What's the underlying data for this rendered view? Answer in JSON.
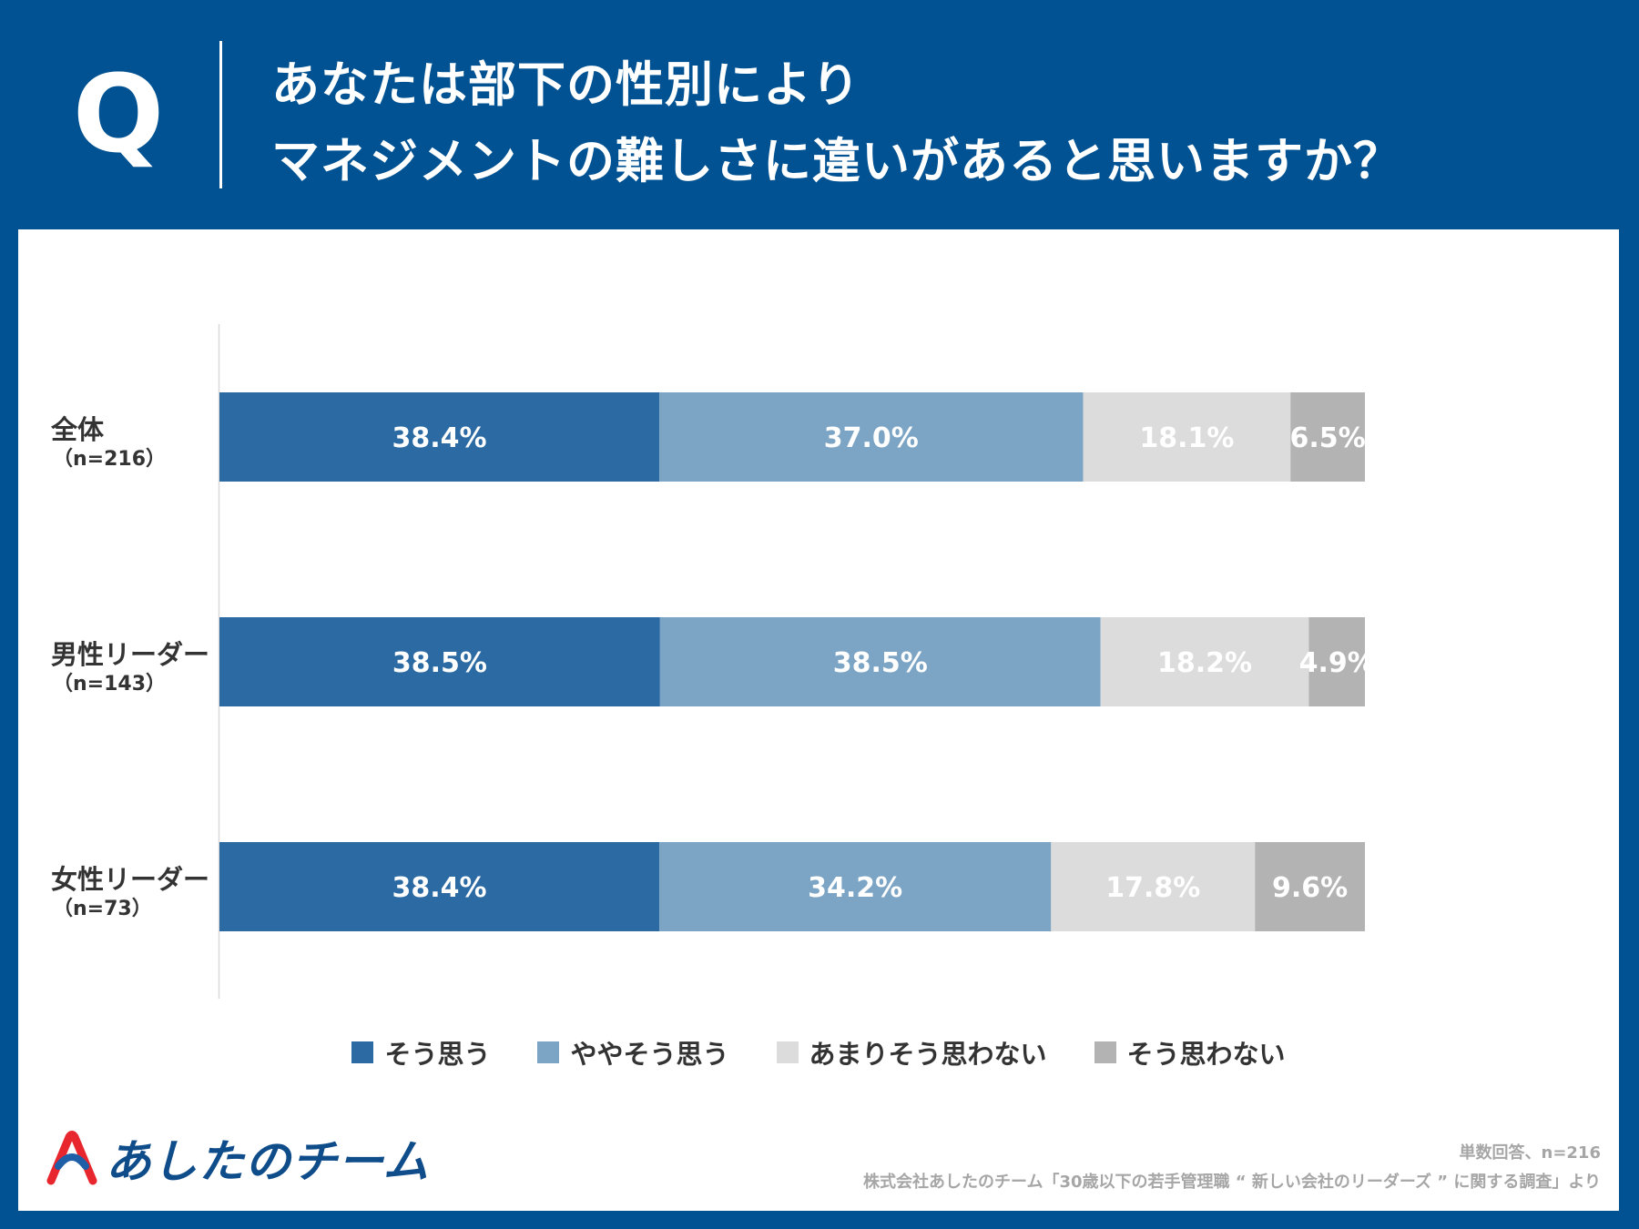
{
  "header": {
    "q_mark": "Q",
    "title_line1": "あなたは部下の性別により",
    "title_line2": "マネジメントの難しさに違いがあると思いますか？"
  },
  "chart_data": {
    "type": "bar",
    "orientation": "horizontal",
    "stacked": true,
    "unit": "%",
    "categories": [
      "全体",
      "男性リーダー",
      "女性リーダー"
    ],
    "category_n": [
      "（n=216）",
      "（n=143）",
      "（n=73）"
    ],
    "series": [
      {
        "name": "そう思う",
        "color": "#2b6aa3",
        "values": [
          38.4,
          38.5,
          38.4
        ],
        "labels": [
          "38.4%",
          "38.5%",
          "38.4%"
        ]
      },
      {
        "name": "ややそう思う",
        "color": "#7ba4c5",
        "values": [
          37.0,
          38.5,
          34.2
        ],
        "labels": [
          "37.0%",
          "38.5%",
          "34.2%"
        ]
      },
      {
        "name": "あまりそう思わない",
        "color": "#dcdcdc",
        "values": [
          18.1,
          18.2,
          17.8
        ],
        "labels": [
          "18.1%",
          "18.2%",
          "17.8%"
        ]
      },
      {
        "name": "そう思わない",
        "color": "#b3b3b3",
        "values": [
          6.5,
          4.9,
          9.6
        ],
        "labels": [
          "6.5%",
          "4.9%",
          "9.6%"
        ]
      }
    ],
    "legend": "bottom"
  },
  "logo": {
    "text": "あしたのチーム"
  },
  "notes": {
    "line1": "単数回答、n=216",
    "line2": "株式会社あしたのチーム「30歳以下の若手管理職 “ 新しい会社のリーダーズ ” に関する調査」より"
  }
}
